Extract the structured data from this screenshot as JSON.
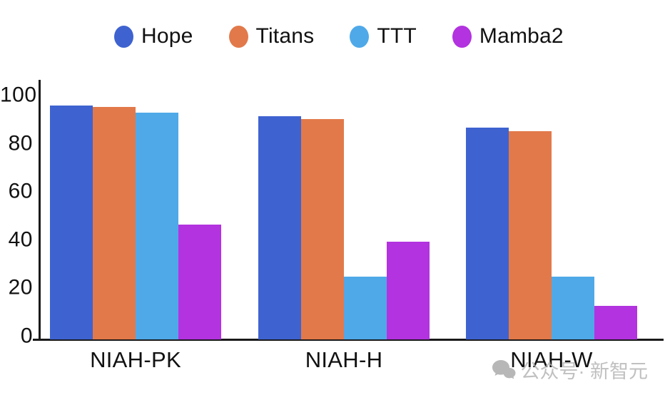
{
  "chart_data": {
    "type": "bar",
    "title": "",
    "xlabel": "",
    "ylabel": "",
    "categories": [
      "NIAH-PK",
      "NIAH-H",
      "NIAH-W"
    ],
    "series": [
      {
        "name": "Hope",
        "color": "#3E63D0",
        "values": [
          97,
          92.5,
          88
        ]
      },
      {
        "name": "Titans",
        "color": "#E2794A",
        "values": [
          96.5,
          91.5,
          86.5
        ]
      },
      {
        "name": "TTT",
        "color": "#4FA9E8",
        "values": [
          94,
          26,
          26
        ]
      },
      {
        "name": "Mamba2",
        "color": "#B233DF",
        "values": [
          47.5,
          40.5,
          14
        ]
      }
    ],
    "ylim": [
      0,
      100
    ],
    "yticks": [
      0,
      20,
      40,
      60,
      80,
      100
    ],
    "grid": false,
    "legend_position": "top"
  },
  "style": {
    "axis_color": "#1a1a1a",
    "text_color": "#111111"
  },
  "watermark": {
    "text": "公众号· 新智元",
    "color": "#b3b3b3",
    "icon": "chat-bubbles-icon"
  }
}
